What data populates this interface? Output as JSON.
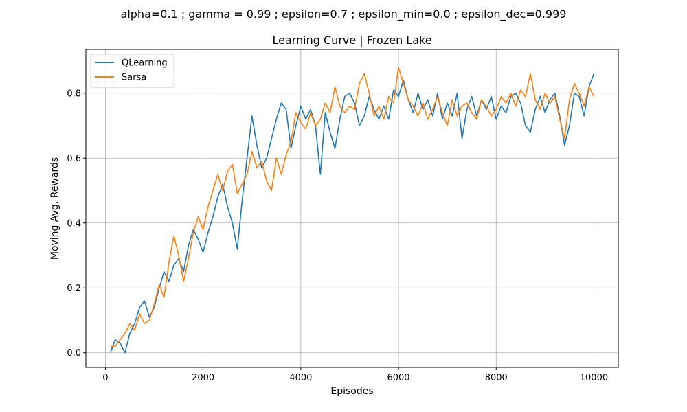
{
  "chart_data": {
    "type": "line",
    "suptitle": "alpha=0.1 ; gamma = 0.99 ; epsilon=0.7 ; epsilon_min=0.0 ; epsilon_dec=0.999",
    "title": "Learning Curve | Frozen Lake",
    "xlabel": "Episodes",
    "ylabel": "Moving Avg. Rewards",
    "xlim": [
      -400,
      10500
    ],
    "ylim": [
      -0.045,
      0.935
    ],
    "xticks": [
      0,
      2000,
      4000,
      6000,
      8000,
      10000
    ],
    "yticks": [
      0.0,
      0.2,
      0.4,
      0.6,
      0.8
    ],
    "xtick_labels": [
      "0",
      "2000",
      "4000",
      "6000",
      "8000",
      "10000"
    ],
    "ytick_labels": [
      "0.0",
      "0.2",
      "0.4",
      "0.6",
      "0.8"
    ],
    "grid": true,
    "legend_position": "upper-left",
    "series": [
      {
        "name": "QLearning",
        "color": "#1f77b4",
        "points": [
          [
            100,
            0.0
          ],
          [
            200,
            0.04
          ],
          [
            300,
            0.03
          ],
          [
            400,
            0.0
          ],
          [
            500,
            0.06
          ],
          [
            600,
            0.09
          ],
          [
            700,
            0.14
          ],
          [
            800,
            0.16
          ],
          [
            900,
            0.11
          ],
          [
            1000,
            0.14
          ],
          [
            1100,
            0.2
          ],
          [
            1200,
            0.25
          ],
          [
            1300,
            0.22
          ],
          [
            1400,
            0.27
          ],
          [
            1500,
            0.29
          ],
          [
            1600,
            0.25
          ],
          [
            1700,
            0.33
          ],
          [
            1800,
            0.38
          ],
          [
            1900,
            0.35
          ],
          [
            2000,
            0.31
          ],
          [
            2100,
            0.37
          ],
          [
            2200,
            0.42
          ],
          [
            2300,
            0.48
          ],
          [
            2400,
            0.52
          ],
          [
            2500,
            0.45
          ],
          [
            2600,
            0.4
          ],
          [
            2700,
            0.32
          ],
          [
            2800,
            0.47
          ],
          [
            2900,
            0.6
          ],
          [
            3000,
            0.73
          ],
          [
            3100,
            0.64
          ],
          [
            3200,
            0.57
          ],
          [
            3300,
            0.6
          ],
          [
            3400,
            0.66
          ],
          [
            3500,
            0.72
          ],
          [
            3600,
            0.77
          ],
          [
            3700,
            0.75
          ],
          [
            3800,
            0.63
          ],
          [
            3900,
            0.7
          ],
          [
            4000,
            0.76
          ],
          [
            4100,
            0.72
          ],
          [
            4200,
            0.75
          ],
          [
            4300,
            0.7
          ],
          [
            4400,
            0.55
          ],
          [
            4500,
            0.74
          ],
          [
            4600,
            0.68
          ],
          [
            4700,
            0.63
          ],
          [
            4800,
            0.72
          ],
          [
            4900,
            0.79
          ],
          [
            5000,
            0.8
          ],
          [
            5100,
            0.77
          ],
          [
            5200,
            0.7
          ],
          [
            5300,
            0.73
          ],
          [
            5400,
            0.79
          ],
          [
            5500,
            0.75
          ],
          [
            5600,
            0.72
          ],
          [
            5700,
            0.76
          ],
          [
            5800,
            0.72
          ],
          [
            5900,
            0.81
          ],
          [
            6000,
            0.79
          ],
          [
            6100,
            0.84
          ],
          [
            6200,
            0.78
          ],
          [
            6300,
            0.74
          ],
          [
            6400,
            0.8
          ],
          [
            6500,
            0.75
          ],
          [
            6600,
            0.78
          ],
          [
            6700,
            0.73
          ],
          [
            6800,
            0.8
          ],
          [
            6900,
            0.72
          ],
          [
            7000,
            0.77
          ],
          [
            7100,
            0.73
          ],
          [
            7200,
            0.8
          ],
          [
            7300,
            0.66
          ],
          [
            7400,
            0.75
          ],
          [
            7500,
            0.79
          ],
          [
            7600,
            0.73
          ],
          [
            7700,
            0.78
          ],
          [
            7800,
            0.75
          ],
          [
            7900,
            0.79
          ],
          [
            8000,
            0.72
          ],
          [
            8100,
            0.76
          ],
          [
            8200,
            0.74
          ],
          [
            8300,
            0.79
          ],
          [
            8400,
            0.8
          ],
          [
            8500,
            0.77
          ],
          [
            8600,
            0.7
          ],
          [
            8700,
            0.68
          ],
          [
            8800,
            0.75
          ],
          [
            8900,
            0.79
          ],
          [
            9000,
            0.74
          ],
          [
            9100,
            0.78
          ],
          [
            9200,
            0.8
          ],
          [
            9300,
            0.73
          ],
          [
            9400,
            0.64
          ],
          [
            9500,
            0.7
          ],
          [
            9600,
            0.8
          ],
          [
            9700,
            0.79
          ],
          [
            9800,
            0.73
          ],
          [
            9900,
            0.82
          ],
          [
            10000,
            0.86
          ]
        ]
      },
      {
        "name": "Sarsa",
        "color": "#ff7f0e",
        "points": [
          [
            100,
            0.02
          ],
          [
            200,
            0.02
          ],
          [
            300,
            0.04
          ],
          [
            400,
            0.06
          ],
          [
            500,
            0.09
          ],
          [
            600,
            0.07
          ],
          [
            700,
            0.12
          ],
          [
            800,
            0.09
          ],
          [
            900,
            0.1
          ],
          [
            1000,
            0.15
          ],
          [
            1100,
            0.21
          ],
          [
            1200,
            0.17
          ],
          [
            1300,
            0.28
          ],
          [
            1400,
            0.36
          ],
          [
            1500,
            0.3
          ],
          [
            1600,
            0.22
          ],
          [
            1700,
            0.29
          ],
          [
            1800,
            0.37
          ],
          [
            1900,
            0.42
          ],
          [
            2000,
            0.38
          ],
          [
            2100,
            0.45
          ],
          [
            2200,
            0.5
          ],
          [
            2300,
            0.55
          ],
          [
            2400,
            0.5
          ],
          [
            2500,
            0.56
          ],
          [
            2600,
            0.58
          ],
          [
            2700,
            0.49
          ],
          [
            2800,
            0.52
          ],
          [
            2900,
            0.55
          ],
          [
            3000,
            0.62
          ],
          [
            3100,
            0.57
          ],
          [
            3200,
            0.59
          ],
          [
            3300,
            0.53
          ],
          [
            3400,
            0.5
          ],
          [
            3500,
            0.6
          ],
          [
            3600,
            0.55
          ],
          [
            3700,
            0.61
          ],
          [
            3800,
            0.65
          ],
          [
            3900,
            0.74
          ],
          [
            4000,
            0.71
          ],
          [
            4100,
            0.69
          ],
          [
            4200,
            0.74
          ],
          [
            4300,
            0.7
          ],
          [
            4400,
            0.72
          ],
          [
            4500,
            0.77
          ],
          [
            4600,
            0.74
          ],
          [
            4700,
            0.82
          ],
          [
            4800,
            0.76
          ],
          [
            4900,
            0.74
          ],
          [
            5000,
            0.76
          ],
          [
            5100,
            0.75
          ],
          [
            5200,
            0.83
          ],
          [
            5300,
            0.86
          ],
          [
            5400,
            0.8
          ],
          [
            5500,
            0.73
          ],
          [
            5600,
            0.76
          ],
          [
            5700,
            0.72
          ],
          [
            5800,
            0.79
          ],
          [
            5900,
            0.77
          ],
          [
            6000,
            0.88
          ],
          [
            6100,
            0.83
          ],
          [
            6200,
            0.78
          ],
          [
            6300,
            0.76
          ],
          [
            6400,
            0.73
          ],
          [
            6500,
            0.77
          ],
          [
            6600,
            0.72
          ],
          [
            6700,
            0.75
          ],
          [
            6800,
            0.79
          ],
          [
            6900,
            0.74
          ],
          [
            7000,
            0.7
          ],
          [
            7100,
            0.78
          ],
          [
            7200,
            0.73
          ],
          [
            7300,
            0.76
          ],
          [
            7400,
            0.77
          ],
          [
            7500,
            0.74
          ],
          [
            7600,
            0.72
          ],
          [
            7700,
            0.78
          ],
          [
            7800,
            0.76
          ],
          [
            7900,
            0.73
          ],
          [
            8000,
            0.75
          ],
          [
            8100,
            0.79
          ],
          [
            8200,
            0.77
          ],
          [
            8300,
            0.8
          ],
          [
            8400,
            0.76
          ],
          [
            8500,
            0.81
          ],
          [
            8600,
            0.79
          ],
          [
            8700,
            0.86
          ],
          [
            8800,
            0.78
          ],
          [
            8900,
            0.75
          ],
          [
            9000,
            0.8
          ],
          [
            9100,
            0.77
          ],
          [
            9200,
            0.79
          ],
          [
            9300,
            0.72
          ],
          [
            9400,
            0.66
          ],
          [
            9500,
            0.78
          ],
          [
            9600,
            0.83
          ],
          [
            9700,
            0.8
          ],
          [
            9800,
            0.76
          ],
          [
            9900,
            0.82
          ],
          [
            10000,
            0.79
          ]
        ]
      }
    ]
  }
}
